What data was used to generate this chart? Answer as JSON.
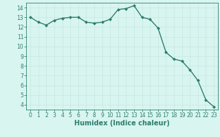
{
  "x": [
    0,
    1,
    2,
    3,
    4,
    5,
    6,
    7,
    8,
    9,
    10,
    11,
    12,
    13,
    14,
    15,
    16,
    17,
    18,
    19,
    20,
    21,
    22,
    23
  ],
  "y": [
    13.0,
    12.5,
    12.2,
    12.7,
    12.9,
    13.0,
    13.0,
    12.5,
    12.4,
    12.5,
    12.8,
    13.8,
    13.9,
    14.2,
    13.0,
    12.8,
    11.9,
    9.4,
    8.7,
    8.5,
    7.6,
    6.5,
    4.5,
    3.8
  ],
  "line_color": "#2d7d6e",
  "marker": "D",
  "markersize": 2.0,
  "linewidth": 1.0,
  "xlabel": "Humidex (Indice chaleur)",
  "xlim": [
    -0.5,
    23.5
  ],
  "ylim": [
    3.5,
    14.5
  ],
  "yticks": [
    4,
    5,
    6,
    7,
    8,
    9,
    10,
    11,
    12,
    13,
    14
  ],
  "xticks": [
    0,
    1,
    2,
    3,
    4,
    5,
    6,
    7,
    8,
    9,
    10,
    11,
    12,
    13,
    14,
    15,
    16,
    17,
    18,
    19,
    20,
    21,
    22,
    23
  ],
  "bg_color": "#d8f5f0",
  "grid_color": "#c8e8e0",
  "tick_fontsize": 5.5,
  "xlabel_fontsize": 7.0
}
